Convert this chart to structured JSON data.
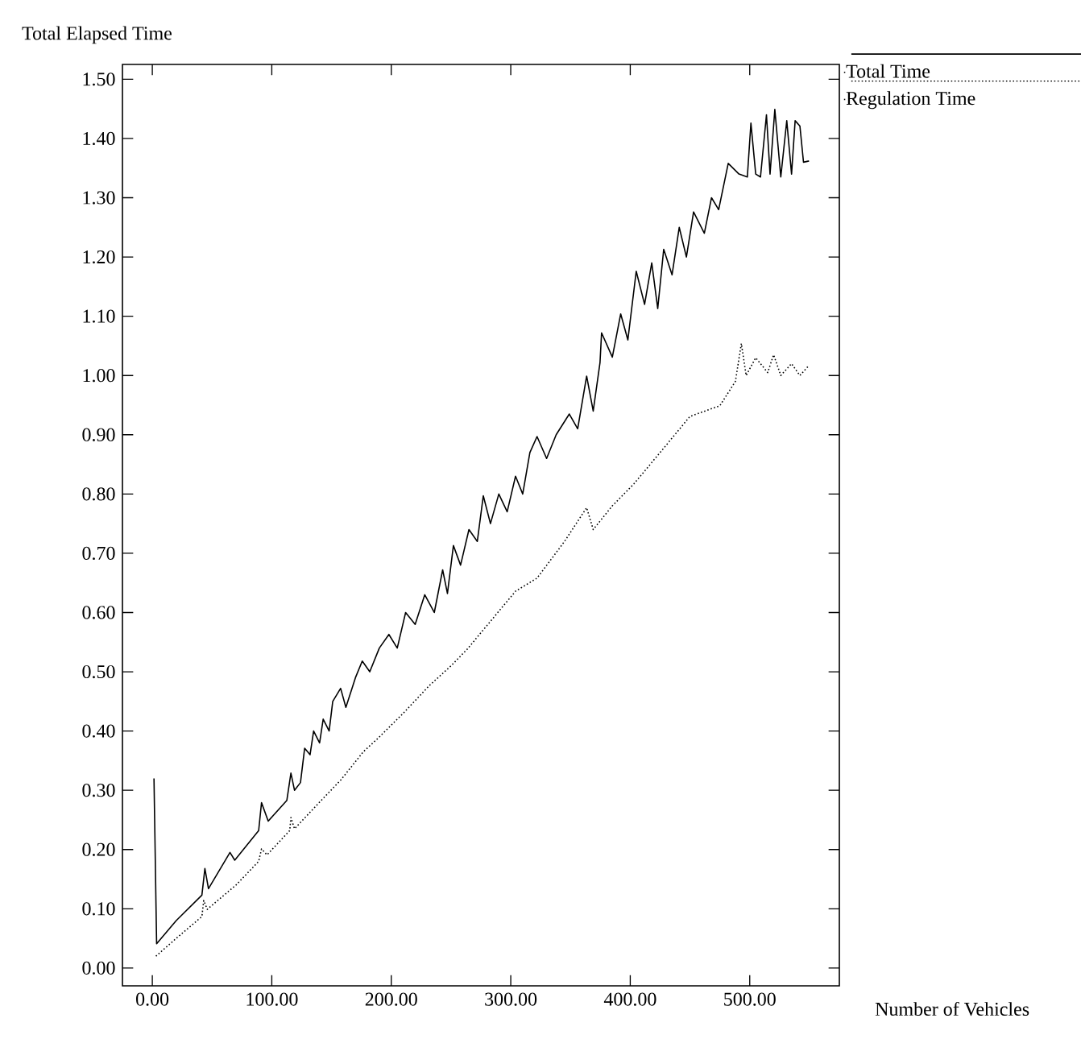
{
  "chart_data": {
    "type": "line",
    "xlabel": "Number of Vehicles",
    "ylabel": "Total Elapsed Time",
    "xlim": [
      -25,
      575
    ],
    "ylim": [
      -0.03,
      1.525
    ],
    "xticks": [
      {
        "value": 0,
        "label": "0.00"
      },
      {
        "value": 100,
        "label": "100.00"
      },
      {
        "value": 200,
        "label": "200.00"
      },
      {
        "value": 300,
        "label": "300.00"
      },
      {
        "value": 400,
        "label": "400.00"
      },
      {
        "value": 500,
        "label": "500.00"
      }
    ],
    "yticks": [
      {
        "value": 0,
        "label": "0.00"
      },
      {
        "value": 0.1,
        "label": "0.10"
      },
      {
        "value": 0.2,
        "label": "0.20"
      },
      {
        "value": 0.3,
        "label": "0.30"
      },
      {
        "value": 0.4,
        "label": "0.40"
      },
      {
        "value": 0.5,
        "label": "0.50"
      },
      {
        "value": 0.6,
        "label": "0.60"
      },
      {
        "value": 0.7,
        "label": "0.70"
      },
      {
        "value": 0.8,
        "label": "0.80"
      },
      {
        "value": 0.9,
        "label": "0.90"
      },
      {
        "value": 1.0,
        "label": "1.00"
      },
      {
        "value": 1.1,
        "label": "1.10"
      },
      {
        "value": 1.2,
        "label": "1.20"
      },
      {
        "value": 1.3,
        "label": "1.30"
      },
      {
        "value": 1.4,
        "label": "1.40"
      },
      {
        "value": 1.5,
        "label": "1.50"
      }
    ],
    "legend": "top right",
    "marker": "none",
    "grid": false,
    "series": [
      {
        "name": "Total Time",
        "color": "#000000",
        "line_style": "solid",
        "x": [
          1.4,
          3.6,
          20,
          41.5,
          44,
          47,
          65,
          69,
          89,
          91.4,
          97,
          112.6,
          116,
          119,
          124,
          127.5,
          132,
          135,
          140,
          143,
          148,
          151,
          157.6,
          162,
          170,
          175.7,
          182,
          190,
          198,
          205,
          212,
          220,
          228,
          236,
          243,
          247,
          252,
          258,
          265,
          272,
          277,
          283,
          290,
          297,
          304,
          310,
          316,
          322,
          330,
          338,
          349,
          356,
          363.5,
          369,
          374.7,
          376,
          385,
          392,
          398,
          405,
          412,
          418,
          423,
          428,
          435,
          441,
          447,
          453,
          462,
          468,
          474,
          482,
          491,
          498,
          501,
          505,
          509,
          514,
          517,
          521,
          526,
          531,
          535,
          538,
          542,
          545,
          549.6
        ],
        "values": [
          0.32,
          0.041,
          0.08,
          0.123,
          0.168,
          0.134,
          0.195,
          0.182,
          0.232,
          0.279,
          0.248,
          0.283,
          0.329,
          0.3,
          0.313,
          0.371,
          0.36,
          0.4,
          0.38,
          0.42,
          0.4,
          0.45,
          0.472,
          0.44,
          0.49,
          0.518,
          0.5,
          0.54,
          0.563,
          0.54,
          0.6,
          0.58,
          0.63,
          0.6,
          0.672,
          0.632,
          0.713,
          0.68,
          0.74,
          0.72,
          0.797,
          0.75,
          0.8,
          0.77,
          0.83,
          0.8,
          0.87,
          0.897,
          0.86,
          0.9,
          0.935,
          0.91,
          0.999,
          0.94,
          1.022,
          1.072,
          1.031,
          1.104,
          1.06,
          1.176,
          1.12,
          1.19,
          1.113,
          1.213,
          1.17,
          1.25,
          1.2,
          1.276,
          1.24,
          1.3,
          1.28,
          1.358,
          1.34,
          1.335,
          1.426,
          1.34,
          1.335,
          1.44,
          1.34,
          1.449,
          1.335,
          1.43,
          1.34,
          1.43,
          1.421,
          1.36,
          1.362
        ]
      },
      {
        "name": "Regulation Time",
        "color": "#000000",
        "line_style": "dotted",
        "x": [
          3,
          20,
          41.5,
          43,
          46,
          70,
          89,
          91.4,
          96,
          115,
          116,
          119,
          140,
          158,
          176.6,
          189,
          210,
          232,
          250,
          263.5,
          285,
          304,
          322,
          345,
          363.5,
          369,
          385,
          403,
          425,
          450,
          475,
          488,
          493,
          497,
          505,
          515,
          520,
          526,
          535,
          542,
          549.6
        ],
        "values": [
          0.02,
          0.05,
          0.087,
          0.114,
          0.099,
          0.14,
          0.18,
          0.201,
          0.191,
          0.232,
          0.254,
          0.235,
          0.28,
          0.318,
          0.365,
          0.388,
          0.43,
          0.477,
          0.51,
          0.538,
          0.59,
          0.636,
          0.658,
          0.72,
          0.777,
          0.74,
          0.78,
          0.817,
          0.87,
          0.931,
          0.949,
          0.99,
          1.054,
          1.0,
          1.03,
          1.005,
          1.035,
          1.0,
          1.02,
          1.0,
          1.017
        ]
      }
    ]
  }
}
